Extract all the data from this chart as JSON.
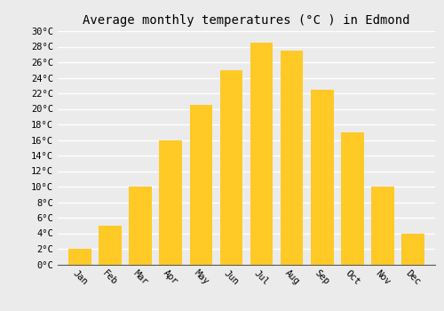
{
  "title": "Average monthly temperatures (°C ) in Edmond",
  "months": [
    "Jan",
    "Feb",
    "Mar",
    "Apr",
    "May",
    "Jun",
    "Jul",
    "Aug",
    "Sep",
    "Oct",
    "Nov",
    "Dec"
  ],
  "temperatures": [
    2,
    5,
    10,
    16,
    20.5,
    25,
    28.5,
    27.5,
    22.5,
    17,
    10,
    4
  ],
  "bar_color": "#FFC926",
  "ylim": [
    0,
    30
  ],
  "yticks": [
    0,
    2,
    4,
    6,
    8,
    10,
    12,
    14,
    16,
    18,
    20,
    22,
    24,
    26,
    28,
    30
  ],
  "background_color": "#ebebeb",
  "grid_color": "#ffffff",
  "title_fontsize": 10,
  "tick_fontsize": 7.5,
  "font_family": "monospace",
  "bar_width": 0.75
}
